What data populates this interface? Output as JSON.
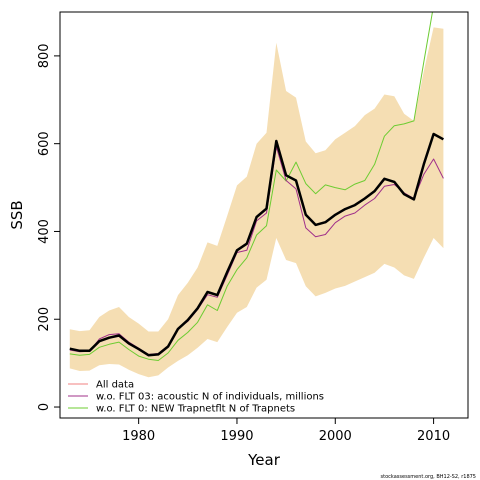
{
  "chart_data": {
    "type": "line",
    "xlabel": "Year",
    "ylabel": "SSB",
    "xlim": [
      1972,
      2013.5
    ],
    "ylim": [
      -25,
      900
    ],
    "x_ticks": [
      1980,
      1990,
      2000,
      2010
    ],
    "y_ticks": [
      0,
      200,
      400,
      600,
      800
    ],
    "x": [
      1973,
      1974,
      1975,
      1976,
      1977,
      1978,
      1979,
      1980,
      1981,
      1982,
      1983,
      1984,
      1985,
      1986,
      1987,
      1988,
      1989,
      1990,
      1991,
      1992,
      1993,
      1994,
      1995,
      1996,
      1997,
      1998,
      1999,
      2000,
      2001,
      2002,
      2003,
      2004,
      2005,
      2006,
      2007,
      2008,
      2009,
      2010,
      2011
    ],
    "band": {
      "color": "#f5deb3",
      "lower": [
        88,
        82,
        83,
        95,
        98,
        97,
        85,
        75,
        68,
        72,
        90,
        105,
        118,
        135,
        155,
        148,
        182,
        215,
        228,
        272,
        290,
        385,
        335,
        328,
        275,
        252,
        260,
        270,
        276,
        286,
        296,
        306,
        326,
        318,
        300,
        292,
        340,
        385,
        362
      ],
      "upper": [
        177,
        173,
        175,
        205,
        220,
        228,
        205,
        190,
        172,
        172,
        200,
        255,
        283,
        318,
        375,
        367,
        435,
        505,
        525,
        600,
        625,
        830,
        720,
        705,
        605,
        578,
        585,
        610,
        625,
        640,
        665,
        680,
        712,
        708,
        668,
        652,
        765,
        865,
        862
      ]
    },
    "series": [
      {
        "name": "All data",
        "color": "#000000",
        "values": [
          133,
          128,
          128,
          150,
          158,
          163,
          145,
          132,
          118,
          120,
          138,
          178,
          198,
          225,
          262,
          255,
          307,
          357,
          372,
          433,
          452,
          606,
          528,
          516,
          438,
          415,
          421,
          438,
          451,
          460,
          475,
          492,
          520,
          513,
          485,
          473,
          553,
          622,
          610
        ]
      },
      {
        "name": "w.o. FLT 03:   acoustic    N of individuals, millions",
        "color": "#a0308a",
        "values": [
          130,
          126,
          127,
          155,
          165,
          167,
          148,
          134,
          120,
          122,
          140,
          178,
          195,
          222,
          256,
          250,
          300,
          352,
          357,
          424,
          442,
          593,
          516,
          497,
          408,
          388,
          393,
          420,
          435,
          442,
          460,
          475,
          503,
          507,
          488,
          475,
          530,
          565,
          521
        ]
      },
      {
        "name": "w.o. FLT 0: NEW Trapnetflt    N of Trapnets",
        "color": "#6dcc32",
        "values": [
          121,
          118,
          120,
          136,
          143,
          148,
          131,
          116,
          109,
          106,
          123,
          152,
          170,
          193,
          233,
          220,
          275,
          313,
          340,
          392,
          413,
          540,
          515,
          558,
          509,
          486,
          506,
          500,
          495,
          508,
          516,
          553,
          617,
          641,
          645,
          652,
          786,
          915,
          920
        ]
      }
    ],
    "legend": {
      "position": "bottom-left",
      "entries": [
        {
          "label": "All data",
          "color": "#f08080"
        },
        {
          "label": "w.o. FLT 03:   acoustic    N of individuals, millions",
          "color": "#a0308a"
        },
        {
          "label": "w.o. FLT 0: NEW Trapnetflt    N of Trapnets",
          "color": "#6dcc32"
        }
      ]
    }
  },
  "footer": "stockassessment.org, BH12-S2, r1875"
}
